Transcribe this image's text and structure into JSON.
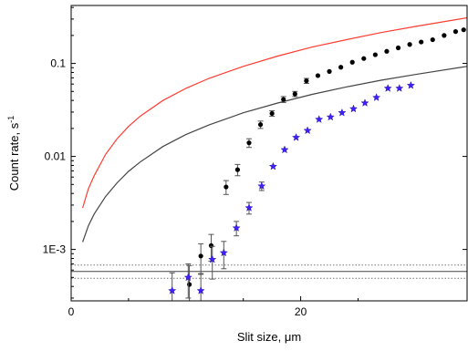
{
  "chart_data": {
    "type": "scatter",
    "title": "",
    "xlabel": "Slit size, μm",
    "ylabel": "Count rate, s",
    "ylabel_superscript": "-1",
    "xlim": [
      0,
      34.5
    ],
    "ylim": [
      0.00028,
      0.42
    ],
    "yscale": "log",
    "grid": false,
    "legend": "none",
    "x_ticks": [
      {
        "value": 0,
        "label": "0"
      },
      {
        "value": 20,
        "label": "20"
      }
    ],
    "y_ticks": [
      {
        "value": 0.001,
        "label": "1E-3"
      },
      {
        "value": 0.01,
        "label": "0.01"
      },
      {
        "value": 0.1,
        "label": "0.1"
      }
    ],
    "series": [
      {
        "kind": "curve",
        "color": "#ff3b30",
        "x": [
          1,
          1.5,
          2,
          3,
          4,
          5,
          6,
          8,
          10,
          12,
          15,
          18,
          21,
          24,
          27,
          30,
          34.5
        ],
        "y": [
          0.0028,
          0.0045,
          0.0062,
          0.0105,
          0.0155,
          0.021,
          0.027,
          0.04,
          0.054,
          0.069,
          0.093,
          0.12,
          0.15,
          0.18,
          0.215,
          0.25,
          0.31
        ]
      },
      {
        "kind": "curve",
        "color": "#444444",
        "x": [
          1,
          1.5,
          2,
          3,
          4,
          5,
          6,
          8,
          10,
          12,
          15,
          18,
          21,
          24,
          27,
          30,
          34.5
        ],
        "y": [
          0.0012,
          0.0018,
          0.0024,
          0.0037,
          0.0052,
          0.0069,
          0.0087,
          0.0128,
          0.0172,
          0.0218,
          0.0295,
          0.0375,
          0.0465,
          0.056,
          0.066,
          0.076,
          0.093
        ]
      },
      {
        "kind": "hline",
        "color": "#444444",
        "style": "solid",
        "y": 0.00058
      },
      {
        "kind": "hline",
        "color": "#777777",
        "style": "dotted",
        "y": 0.00068
      },
      {
        "kind": "hline",
        "color": "#777777",
        "style": "dotted",
        "y": 0.00049
      },
      {
        "kind": "points",
        "marker": "circle",
        "color": "#000000",
        "x": [
          10.3,
          11.3,
          12.2,
          13.5,
          14.5,
          15.5,
          16.5,
          17.5,
          18.5,
          19.5,
          20.5,
          21.5,
          22.5,
          23.5,
          24.5,
          25.5,
          26.5,
          27.5,
          28.5,
          29.5,
          30.5,
          31.5,
          32.5,
          33.5,
          34.2
        ],
        "y": [
          0.00042,
          0.00085,
          0.0011,
          0.0047,
          0.0072,
          0.014,
          0.022,
          0.029,
          0.041,
          0.047,
          0.065,
          0.074,
          0.082,
          0.091,
          0.103,
          0.113,
          0.124,
          0.135,
          0.147,
          0.16,
          0.17,
          0.18,
          0.2,
          0.22,
          0.23
        ],
        "err": [
          0.00025,
          0.0003,
          0.00035,
          0.0008,
          0.001,
          0.0015,
          0.002,
          0.002,
          0.003,
          0.003,
          0.004,
          0,
          0,
          0,
          0,
          0,
          0,
          0,
          0,
          0,
          0,
          0,
          0,
          0,
          0
        ]
      },
      {
        "kind": "points",
        "marker": "star",
        "color": "#3f1fff",
        "x": [
          8.8,
          10.2,
          11.3,
          12.3,
          13.3,
          14.4,
          15.5,
          16.6,
          17.6,
          18.6,
          19.6,
          20.6,
          21.6,
          22.6,
          23.6,
          24.6,
          25.6,
          26.6,
          27.6,
          28.6,
          29.6
        ],
        "y": [
          0.00036,
          0.0005,
          0.00036,
          0.00078,
          0.00092,
          0.0017,
          0.0028,
          0.0048,
          0.0078,
          0.0118,
          0.016,
          0.019,
          0.025,
          0.0265,
          0.0295,
          0.0325,
          0.0375,
          0.043,
          0.054,
          0.054,
          0.058
        ],
        "err": [
          0.0002,
          0.0002,
          0.00018,
          0.0003,
          0.0003,
          0.0003,
          0.0004,
          0.0005,
          0,
          0,
          0,
          0,
          0,
          0,
          0,
          0,
          0,
          0,
          0,
          0,
          0
        ]
      }
    ]
  }
}
